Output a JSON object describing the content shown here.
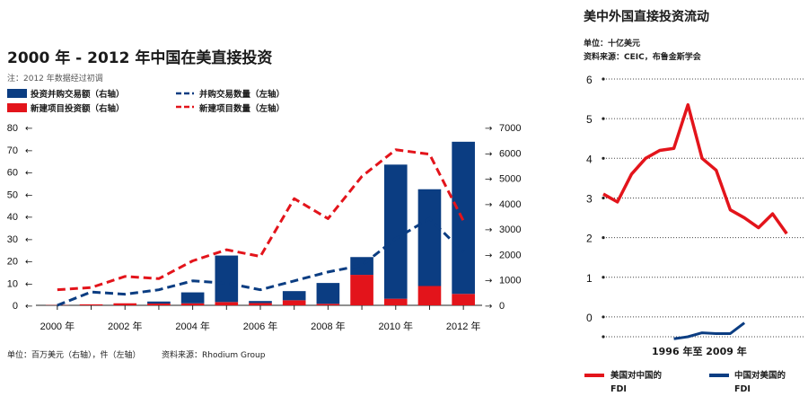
{
  "left": {
    "title": "2000 年 - 2012 年中国在美直接投资",
    "note": "注：2012 年数据经过初调",
    "legend": [
      {
        "label": "投资并购交易额（右轴）",
        "kind": "swatch",
        "color": "#0b3d82"
      },
      {
        "label": "新建项目投资额（右轴）",
        "kind": "swatch",
        "color": "#e3141b"
      },
      {
        "label": "并购交易数量（左轴）",
        "kind": "dash",
        "color": "#0b3d82"
      },
      {
        "label": "新建项目数量（左轴）",
        "kind": "dash",
        "color": "#e3141b"
      }
    ],
    "footer_units": "单位：百万美元（右轴），件（左轴）",
    "footer_source": "资料来源：Rhodium Group"
  },
  "right": {
    "title": "美中外国直接投资流动",
    "units": "单位：十亿美元",
    "source": "资料来源：CEIC，布鲁金斯学会",
    "xlabel": "1996 年至 2009 年",
    "legend": [
      {
        "label_line1": "美国对中国的",
        "label_line2": "FDI",
        "color": "#e3141b"
      },
      {
        "label_line1": "中国对美国的",
        "label_line2": "FDI",
        "color": "#0b3d82"
      }
    ]
  },
  "chart_data": [
    {
      "type": "bar",
      "title": "2000 年 - 2012 年中国在美直接投资",
      "categories": [
        "2000",
        "2001",
        "2002",
        "2003",
        "2004",
        "2005",
        "2006",
        "2007",
        "2008",
        "2009",
        "2010",
        "2011",
        "2012"
      ],
      "x_tick_labels": [
        "2000 年",
        "2002 年",
        "2004 年",
        "2006 年",
        "2008 年",
        "2010 年",
        "2012 年"
      ],
      "left_axis": {
        "ylim": [
          0,
          80
        ],
        "ticks": [
          "0",
          "10",
          "20",
          "30",
          "40",
          "50",
          "60",
          "70",
          "80"
        ]
      },
      "right_axis": {
        "ylim": [
          0,
          7000
        ],
        "ticks": [
          "0",
          "1000",
          "2000",
          "3000",
          "4000",
          "5000",
          "6000",
          "7000"
        ]
      },
      "stacked": true,
      "series": [
        {
          "name": "新建项目投资额（右轴）",
          "axis": "right",
          "type": "bar",
          "color": "#e3141b",
          "values": [
            10,
            40,
            80,
            70,
            80,
            130,
            90,
            200,
            60,
            1200,
            260,
            760,
            450
          ]
        },
        {
          "name": "投资并购交易额（右轴）",
          "axis": "right",
          "type": "bar",
          "color": "#0b3d82",
          "values": [
            0,
            0,
            0,
            80,
            430,
            1830,
            80,
            360,
            820,
            700,
            5280,
            3810,
            5990
          ]
        },
        {
          "name": "并购交易数量（左轴）",
          "axis": "left",
          "type": "dashed-line",
          "color": "#0b3d82",
          "values": [
            0,
            6,
            5,
            7,
            11,
            10,
            7,
            11,
            15,
            18,
            30,
            39,
            24
          ]
        },
        {
          "name": "新建项目数量（左轴）",
          "axis": "left",
          "type": "dashed-line",
          "color": "#e3141b",
          "values": [
            7,
            8,
            13,
            12,
            20,
            25,
            22,
            48,
            39,
            58,
            70,
            68,
            38
          ]
        }
      ]
    },
    {
      "type": "line",
      "title": "美中外国直接投资流动",
      "xlabel": "1996 年至 2009 年",
      "ylabel": "单位：十亿美元",
      "ylim": [
        -0.5,
        6
      ],
      "y_ticks": [
        "0",
        "1",
        "2",
        "3",
        "4",
        "5",
        "6"
      ],
      "series": [
        {
          "name": "美国对中国的 FDI",
          "color": "#e3141b",
          "x": [
            1996,
            1997,
            1998,
            1999,
            2000,
            2001,
            2002,
            2003,
            2004,
            2005,
            2006,
            2007,
            2008,
            2009,
            2010
          ],
          "values": [
            3.1,
            2.9,
            3.6,
            4.0,
            4.2,
            4.25,
            5.35,
            4.0,
            3.7,
            2.7,
            2.5,
            2.25,
            2.6,
            2.1,
            null
          ]
        },
        {
          "name": "中国对美国的 FDI",
          "color": "#0b3d82",
          "x": [
            2001,
            2002,
            2003,
            2004,
            2005,
            2006
          ],
          "values": [
            -0.55,
            -0.5,
            -0.4,
            -0.42,
            -0.42,
            -0.15
          ]
        }
      ]
    }
  ]
}
